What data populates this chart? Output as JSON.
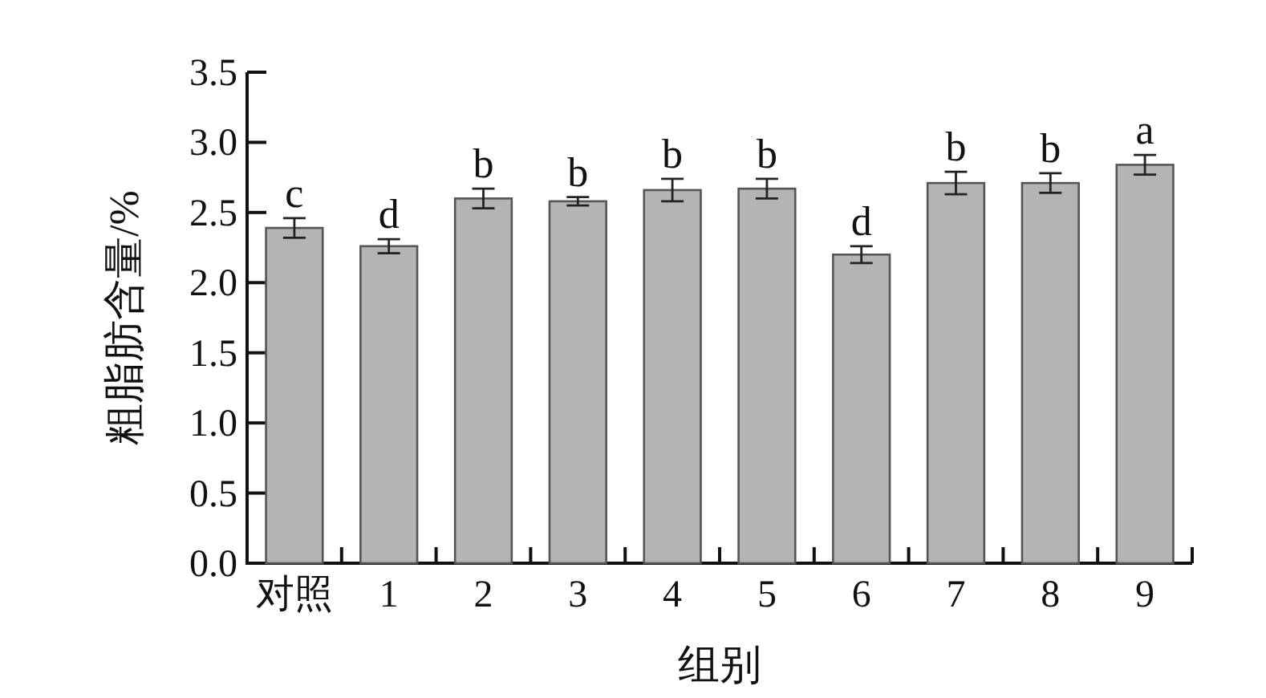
{
  "chart_data": {
    "type": "bar",
    "xlabel": "组别",
    "ylabel": "粗脂肪含量/%",
    "categories": [
      "对照",
      "1",
      "2",
      "3",
      "4",
      "5",
      "6",
      "7",
      "8",
      "9"
    ],
    "values": [
      2.39,
      2.26,
      2.6,
      2.58,
      2.66,
      2.67,
      2.2,
      2.71,
      2.71,
      2.84
    ],
    "errors": [
      0.07,
      0.05,
      0.07,
      0.03,
      0.08,
      0.07,
      0.06,
      0.08,
      0.07,
      0.07
    ],
    "color": "#b4b4b4",
    "ylim": [
      0,
      3.5
    ],
    "yticks": [
      {
        "value": 0,
        "label": "0.0"
      },
      {
        "value": 0.5,
        "label": "0.5"
      },
      {
        "value": 1,
        "label": "1.0"
      },
      {
        "value": 1.5,
        "label": "1.5"
      },
      {
        "value": 2,
        "label": "2.0"
      },
      {
        "value": 2.5,
        "label": "2.5"
      },
      {
        "value": 3,
        "label": "3.0"
      },
      {
        "value": 3.5,
        "label": "3.5"
      }
    ],
    "annotations": [
      {
        "text": "c",
        "x": "对照",
        "y": 2.46
      },
      {
        "text": "d",
        "x": "1",
        "y": 2.31
      },
      {
        "text": "b",
        "x": "2",
        "y": 2.67
      },
      {
        "text": "b",
        "x": "3",
        "y": 2.61
      },
      {
        "text": "b",
        "x": "4",
        "y": 2.74
      },
      {
        "text": "b",
        "x": "5",
        "y": 2.74
      },
      {
        "text": "d",
        "x": "6",
        "y": 2.26
      },
      {
        "text": "b",
        "x": "7",
        "y": 2.79
      },
      {
        "text": "b",
        "x": "8",
        "y": 2.78
      },
      {
        "text": "a",
        "x": "9",
        "y": 2.91
      }
    ]
  }
}
